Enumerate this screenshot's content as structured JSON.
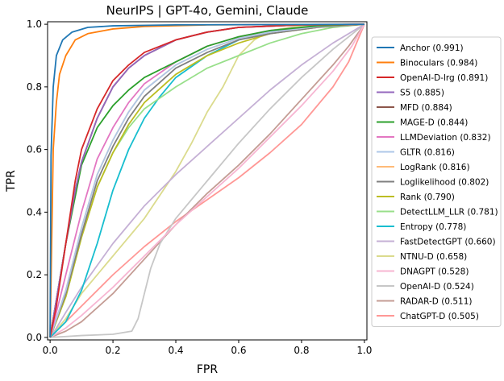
{
  "chart_data": {
    "type": "line",
    "title": "NeurIPS | GPT-4o, Gemini, Claude",
    "xlabel": "FPR",
    "ylabel": "TPR",
    "xlim": [
      0,
      1
    ],
    "ylim": [
      0,
      1
    ],
    "xticks": [
      "0.0",
      "0.2",
      "0.4",
      "0.6",
      "0.8",
      "1.0"
    ],
    "yticks": [
      "0.0",
      "0.2",
      "0.4",
      "0.6",
      "0.8",
      "1.0"
    ],
    "grid": false,
    "legend_position": "right",
    "series": [
      {
        "name": "Anchor (0.991)",
        "color": "#1f77b4",
        "points": [
          [
            0,
            0
          ],
          [
            0.003,
            0.58
          ],
          [
            0.01,
            0.8
          ],
          [
            0.02,
            0.9
          ],
          [
            0.04,
            0.95
          ],
          [
            0.07,
            0.975
          ],
          [
            0.12,
            0.99
          ],
          [
            0.2,
            0.995
          ],
          [
            0.4,
            0.998
          ],
          [
            1,
            1
          ]
        ]
      },
      {
        "name": "Binoculars (0.984)",
        "color": "#ff7f0e",
        "points": [
          [
            0,
            0
          ],
          [
            0.005,
            0.3
          ],
          [
            0.01,
            0.6
          ],
          [
            0.02,
            0.75
          ],
          [
            0.03,
            0.84
          ],
          [
            0.05,
            0.9
          ],
          [
            0.08,
            0.95
          ],
          [
            0.12,
            0.97
          ],
          [
            0.2,
            0.985
          ],
          [
            0.3,
            0.993
          ],
          [
            0.5,
            0.998
          ],
          [
            1,
            1
          ]
        ]
      },
      {
        "name": "OpenAI-D-lrg (0.891)",
        "color": "#d62728",
        "points": [
          [
            0,
            0
          ],
          [
            0.02,
            0.1
          ],
          [
            0.05,
            0.3
          ],
          [
            0.08,
            0.5
          ],
          [
            0.1,
            0.6
          ],
          [
            0.15,
            0.73
          ],
          [
            0.2,
            0.82
          ],
          [
            0.25,
            0.87
          ],
          [
            0.3,
            0.91
          ],
          [
            0.4,
            0.95
          ],
          [
            0.5,
            0.975
          ],
          [
            0.6,
            0.99
          ],
          [
            0.8,
            0.998
          ],
          [
            1,
            1
          ]
        ]
      },
      {
        "name": "S5 (0.885)",
        "color": "#9467bd",
        "points": [
          [
            0,
            0
          ],
          [
            0.02,
            0.12
          ],
          [
            0.05,
            0.3
          ],
          [
            0.08,
            0.47
          ],
          [
            0.1,
            0.56
          ],
          [
            0.15,
            0.7
          ],
          [
            0.2,
            0.8
          ],
          [
            0.25,
            0.86
          ],
          [
            0.3,
            0.9
          ],
          [
            0.4,
            0.95
          ],
          [
            0.5,
            0.975
          ],
          [
            0.6,
            0.99
          ],
          [
            0.8,
            0.998
          ],
          [
            1,
            1
          ]
        ]
      },
      {
        "name": "MFD (0.884)",
        "color": "#8c564b",
        "points": [
          [
            0,
            0
          ],
          [
            0.02,
            0.12
          ],
          [
            0.05,
            0.3
          ],
          [
            0.08,
            0.47
          ],
          [
            0.1,
            0.56
          ],
          [
            0.15,
            0.7
          ],
          [
            0.2,
            0.8
          ],
          [
            0.25,
            0.86
          ],
          [
            0.3,
            0.9
          ],
          [
            0.4,
            0.95
          ],
          [
            0.5,
            0.975
          ],
          [
            0.6,
            0.99
          ],
          [
            0.8,
            0.998
          ],
          [
            1,
            1
          ]
        ]
      },
      {
        "name": "MAGE-D (0.844)",
        "color": "#2ca02c",
        "points": [
          [
            0,
            0
          ],
          [
            0.02,
            0.12
          ],
          [
            0.05,
            0.3
          ],
          [
            0.1,
            0.55
          ],
          [
            0.15,
            0.67
          ],
          [
            0.2,
            0.74
          ],
          [
            0.25,
            0.79
          ],
          [
            0.3,
            0.83
          ],
          [
            0.4,
            0.88
          ],
          [
            0.5,
            0.93
          ],
          [
            0.6,
            0.96
          ],
          [
            0.7,
            0.98
          ],
          [
            0.85,
            0.995
          ],
          [
            1,
            1
          ]
        ]
      },
      {
        "name": "LLMDeviation (0.832)",
        "color": "#e377c2",
        "points": [
          [
            0,
            0
          ],
          [
            0.05,
            0.2
          ],
          [
            0.1,
            0.4
          ],
          [
            0.15,
            0.57
          ],
          [
            0.2,
            0.67
          ],
          [
            0.25,
            0.75
          ],
          [
            0.3,
            0.81
          ],
          [
            0.4,
            0.88
          ],
          [
            0.5,
            0.93
          ],
          [
            0.6,
            0.96
          ],
          [
            0.7,
            0.98
          ],
          [
            0.85,
            0.995
          ],
          [
            1,
            1
          ]
        ]
      },
      {
        "name": "GLTR (0.816)",
        "color": "#aec7e8",
        "points": [
          [
            0,
            0
          ],
          [
            0.05,
            0.15
          ],
          [
            0.1,
            0.35
          ],
          [
            0.15,
            0.52
          ],
          [
            0.2,
            0.63
          ],
          [
            0.25,
            0.72
          ],
          [
            0.3,
            0.79
          ],
          [
            0.4,
            0.87
          ],
          [
            0.5,
            0.92
          ],
          [
            0.6,
            0.955
          ],
          [
            0.7,
            0.975
          ],
          [
            0.85,
            0.993
          ],
          [
            1,
            1
          ]
        ]
      },
      {
        "name": "LogRank (0.816)",
        "color": "#ffbb78",
        "points": [
          [
            0,
            0
          ],
          [
            0.05,
            0.15
          ],
          [
            0.1,
            0.35
          ],
          [
            0.15,
            0.52
          ],
          [
            0.2,
            0.63
          ],
          [
            0.25,
            0.72
          ],
          [
            0.3,
            0.79
          ],
          [
            0.4,
            0.87
          ],
          [
            0.5,
            0.92
          ],
          [
            0.6,
            0.955
          ],
          [
            0.7,
            0.975
          ],
          [
            0.85,
            0.993
          ],
          [
            1,
            1
          ]
        ]
      },
      {
        "name": "Loglikelihood (0.802)",
        "color": "#7f7f7f",
        "points": [
          [
            0,
            0
          ],
          [
            0.05,
            0.14
          ],
          [
            0.1,
            0.33
          ],
          [
            0.15,
            0.5
          ],
          [
            0.2,
            0.61
          ],
          [
            0.25,
            0.7
          ],
          [
            0.3,
            0.77
          ],
          [
            0.4,
            0.86
          ],
          [
            0.5,
            0.91
          ],
          [
            0.6,
            0.95
          ],
          [
            0.7,
            0.97
          ],
          [
            0.85,
            0.99
          ],
          [
            1,
            1
          ]
        ]
      },
      {
        "name": "Rank (0.790)",
        "color": "#bcbd22",
        "points": [
          [
            0,
            0
          ],
          [
            0.05,
            0.13
          ],
          [
            0.1,
            0.32
          ],
          [
            0.15,
            0.48
          ],
          [
            0.2,
            0.59
          ],
          [
            0.25,
            0.68
          ],
          [
            0.3,
            0.75
          ],
          [
            0.4,
            0.84
          ],
          [
            0.5,
            0.9
          ],
          [
            0.6,
            0.94
          ],
          [
            0.7,
            0.97
          ],
          [
            0.85,
            0.99
          ],
          [
            1,
            1
          ]
        ]
      },
      {
        "name": "DetectLLM_LLR (0.781)",
        "color": "#98df8a",
        "points": [
          [
            0,
            0
          ],
          [
            0.05,
            0.13
          ],
          [
            0.1,
            0.32
          ],
          [
            0.15,
            0.48
          ],
          [
            0.2,
            0.59
          ],
          [
            0.25,
            0.67
          ],
          [
            0.3,
            0.73
          ],
          [
            0.4,
            0.8
          ],
          [
            0.5,
            0.86
          ],
          [
            0.6,
            0.9
          ],
          [
            0.7,
            0.94
          ],
          [
            0.8,
            0.97
          ],
          [
            0.9,
            0.99
          ],
          [
            1,
            1
          ]
        ]
      },
      {
        "name": "Entropy (0.778)",
        "color": "#17becf",
        "points": [
          [
            0,
            0
          ],
          [
            0.05,
            0.05
          ],
          [
            0.1,
            0.15
          ],
          [
            0.15,
            0.3
          ],
          [
            0.2,
            0.47
          ],
          [
            0.25,
            0.6
          ],
          [
            0.3,
            0.7
          ],
          [
            0.35,
            0.77
          ],
          [
            0.4,
            0.83
          ],
          [
            0.5,
            0.9
          ],
          [
            0.6,
            0.95
          ],
          [
            0.7,
            0.975
          ],
          [
            0.85,
            0.993
          ],
          [
            1,
            1
          ]
        ]
      },
      {
        "name": "FastDetectGPT (0.660)",
        "color": "#c5b0d5",
        "points": [
          [
            0,
            0
          ],
          [
            0.02,
            0.03
          ],
          [
            0.05,
            0.08
          ],
          [
            0.1,
            0.16
          ],
          [
            0.2,
            0.3
          ],
          [
            0.3,
            0.42
          ],
          [
            0.4,
            0.52
          ],
          [
            0.5,
            0.61
          ],
          [
            0.6,
            0.7
          ],
          [
            0.7,
            0.79
          ],
          [
            0.8,
            0.87
          ],
          [
            0.9,
            0.94
          ],
          [
            1,
            1
          ]
        ]
      },
      {
        "name": "NTNU-D (0.658)",
        "color": "#dbdb8d",
        "points": [
          [
            0,
            0
          ],
          [
            0.05,
            0.06
          ],
          [
            0.1,
            0.14
          ],
          [
            0.2,
            0.26
          ],
          [
            0.3,
            0.38
          ],
          [
            0.4,
            0.53
          ],
          [
            0.45,
            0.62
          ],
          [
            0.5,
            0.72
          ],
          [
            0.55,
            0.8
          ],
          [
            0.6,
            0.9
          ],
          [
            0.65,
            0.95
          ],
          [
            0.7,
            0.98
          ],
          [
            0.8,
            0.995
          ],
          [
            1,
            1
          ]
        ]
      },
      {
        "name": "DNAGPT (0.528)",
        "color": "#f7b6d2",
        "points": [
          [
            0,
            0
          ],
          [
            0.05,
            0.03
          ],
          [
            0.1,
            0.07
          ],
          [
            0.2,
            0.16
          ],
          [
            0.3,
            0.26
          ],
          [
            0.4,
            0.36
          ],
          [
            0.5,
            0.45
          ],
          [
            0.6,
            0.54
          ],
          [
            0.7,
            0.64
          ],
          [
            0.8,
            0.74
          ],
          [
            0.9,
            0.85
          ],
          [
            0.96,
            0.93
          ],
          [
            1,
            1
          ]
        ]
      },
      {
        "name": "OpenAI-D (0.524)",
        "color": "#c7c7c7",
        "points": [
          [
            0,
            0
          ],
          [
            0.05,
            0.003
          ],
          [
            0.1,
            0.006
          ],
          [
            0.2,
            0.01
          ],
          [
            0.26,
            0.02
          ],
          [
            0.28,
            0.06
          ],
          [
            0.3,
            0.14
          ],
          [
            0.32,
            0.22
          ],
          [
            0.35,
            0.3
          ],
          [
            0.4,
            0.38
          ],
          [
            0.5,
            0.5
          ],
          [
            0.6,
            0.62
          ],
          [
            0.7,
            0.73
          ],
          [
            0.8,
            0.83
          ],
          [
            0.9,
            0.92
          ],
          [
            1,
            1
          ]
        ]
      },
      {
        "name": "RADAR-D (0.511)",
        "color": "#c49c94",
        "points": [
          [
            0,
            0
          ],
          [
            0.05,
            0.02
          ],
          [
            0.1,
            0.05
          ],
          [
            0.2,
            0.14
          ],
          [
            0.3,
            0.25
          ],
          [
            0.4,
            0.36
          ],
          [
            0.5,
            0.46
          ],
          [
            0.6,
            0.55
          ],
          [
            0.7,
            0.65
          ],
          [
            0.8,
            0.76
          ],
          [
            0.9,
            0.87
          ],
          [
            0.95,
            0.93
          ],
          [
            1,
            1
          ]
        ]
      },
      {
        "name": "ChatGPT-D (0.505)",
        "color": "#ff9896",
        "points": [
          [
            0,
            0
          ],
          [
            0.05,
            0.05
          ],
          [
            0.1,
            0.1
          ],
          [
            0.2,
            0.2
          ],
          [
            0.3,
            0.29
          ],
          [
            0.4,
            0.37
          ],
          [
            0.5,
            0.44
          ],
          [
            0.6,
            0.51
          ],
          [
            0.7,
            0.59
          ],
          [
            0.8,
            0.68
          ],
          [
            0.9,
            0.8
          ],
          [
            0.95,
            0.88
          ],
          [
            1,
            1
          ]
        ]
      }
    ]
  }
}
